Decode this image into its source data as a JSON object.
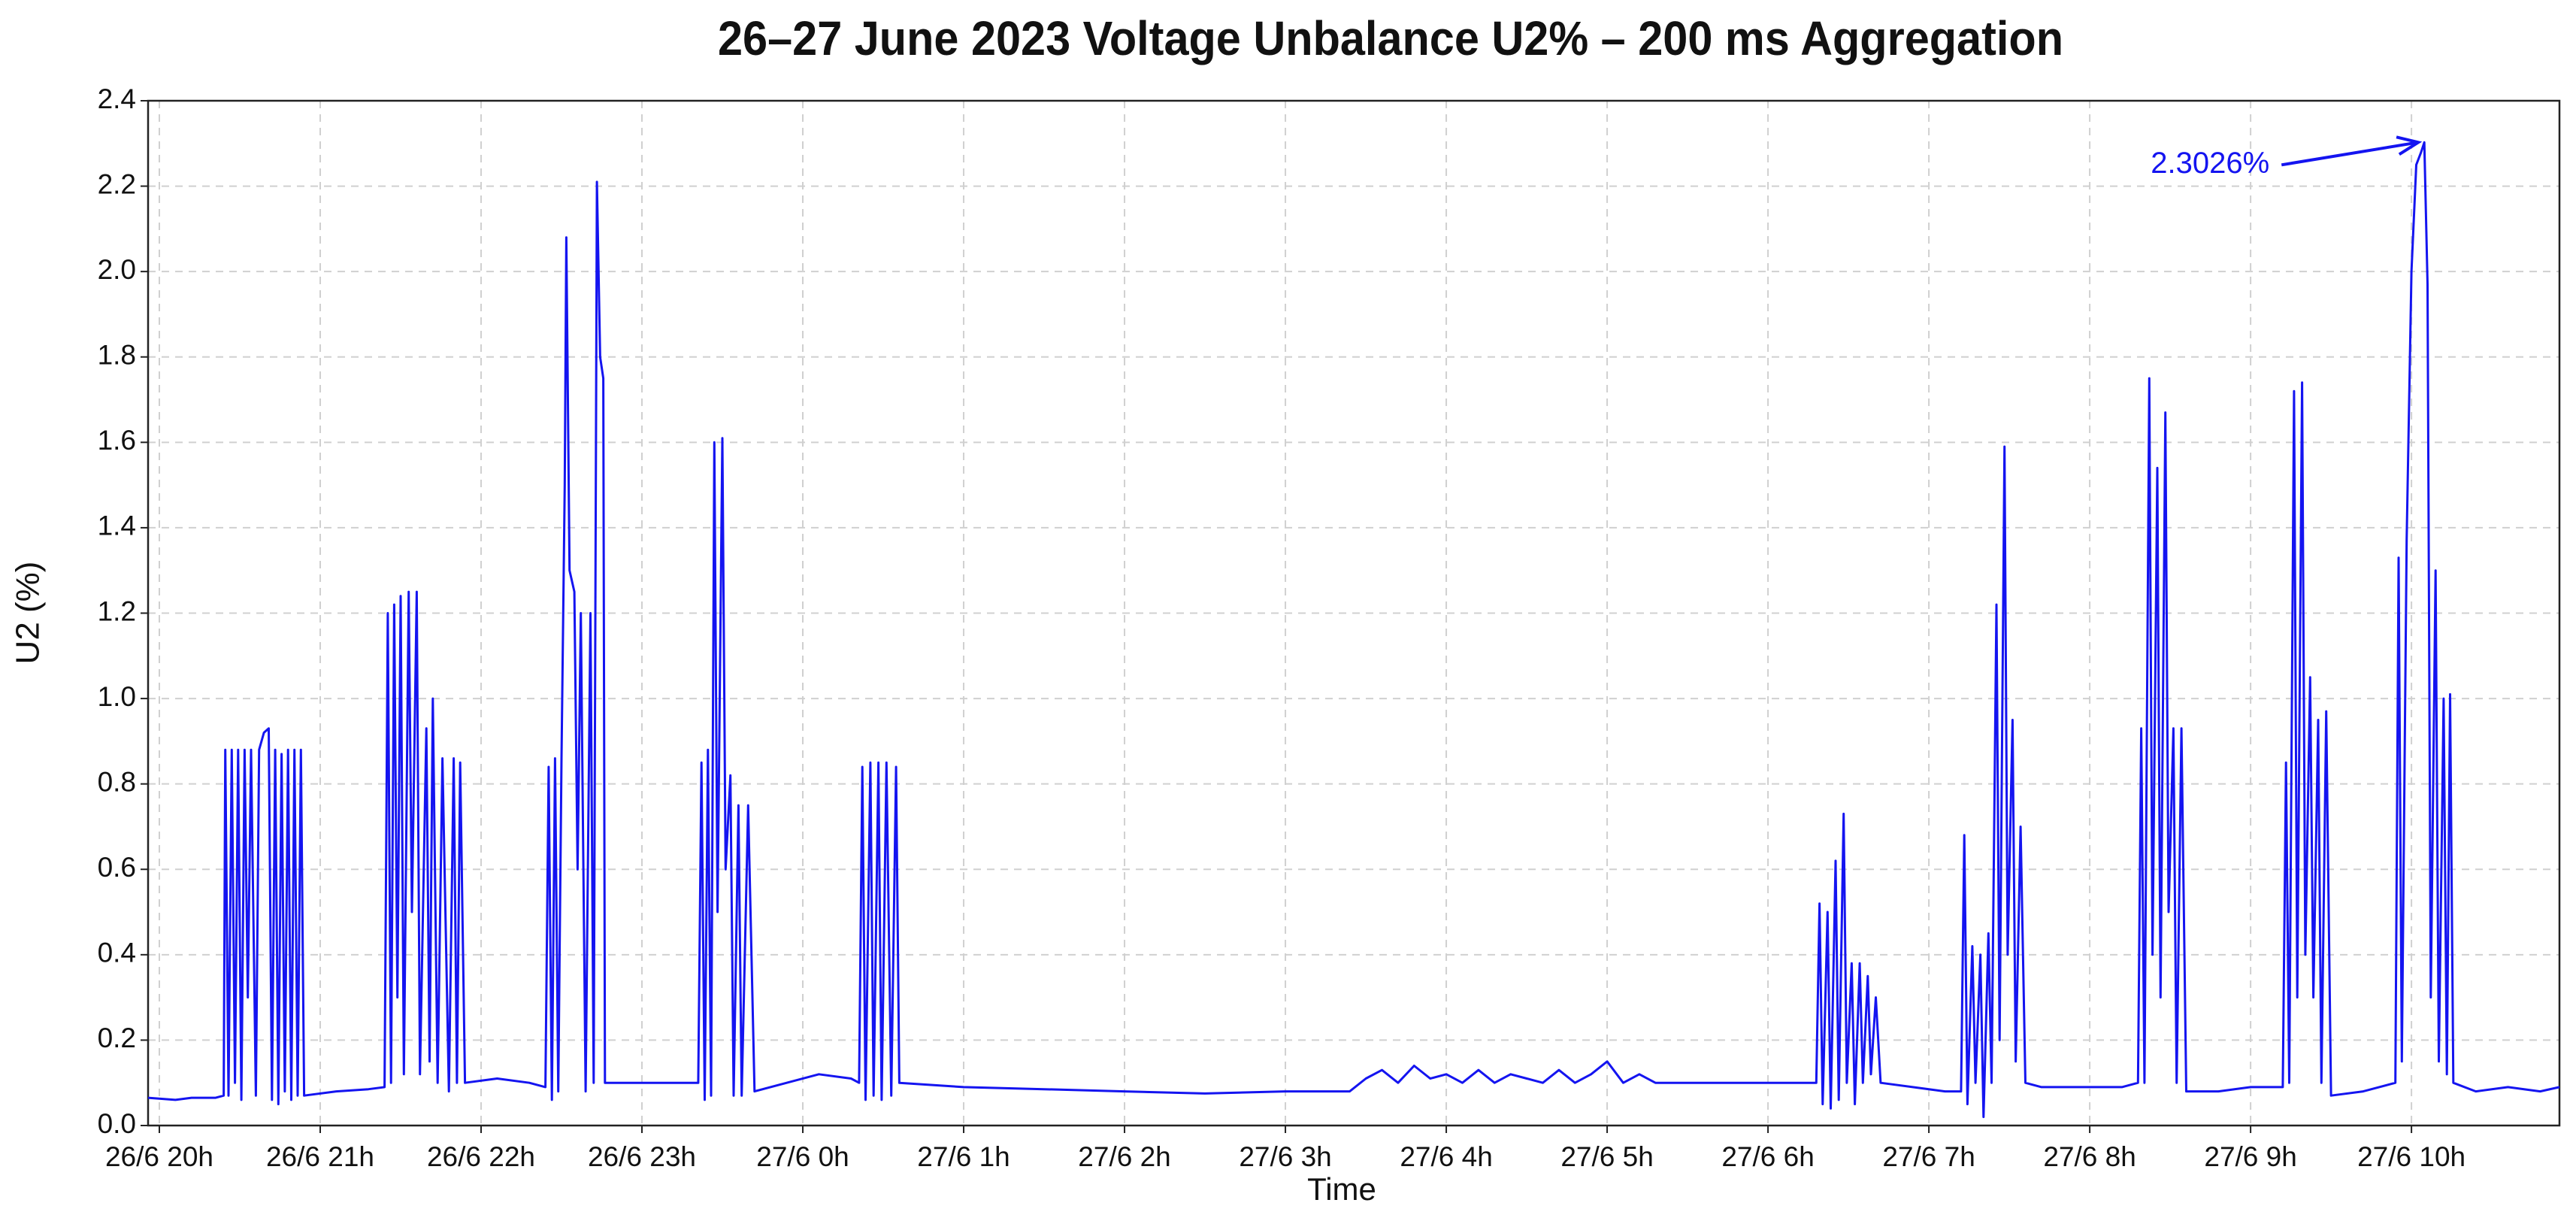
{
  "chart_data": {
    "type": "line",
    "title": "26–27 June 2023 Voltage Unbalance U2% – 200 ms Aggregation",
    "x_label": "Time",
    "y_label": "U2 (%)",
    "xlim": [
      19.93,
      34.92
    ],
    "xticks": [
      {
        "value": 20,
        "label": "26/6 20h"
      },
      {
        "value": 21,
        "label": "26/6 21h"
      },
      {
        "value": 22,
        "label": "26/6 22h"
      },
      {
        "value": 23,
        "label": "26/6 23h"
      },
      {
        "value": 24,
        "label": "27/6 0h"
      },
      {
        "value": 25,
        "label": "27/6 1h"
      },
      {
        "value": 26,
        "label": "27/6 2h"
      },
      {
        "value": 27,
        "label": "27/6 3h"
      },
      {
        "value": 28,
        "label": "27/6 4h"
      },
      {
        "value": 29,
        "label": "27/6 5h"
      },
      {
        "value": 30,
        "label": "27/6 6h"
      },
      {
        "value": 31,
        "label": "27/6 7h"
      },
      {
        "value": 32,
        "label": "27/6 8h"
      },
      {
        "value": 33,
        "label": "27/6 9h"
      },
      {
        "value": 34,
        "label": "27/6 10h"
      }
    ],
    "ylim": [
      0,
      2.4
    ],
    "yticks": [
      {
        "value": 0,
        "label": "0.0"
      },
      0.2,
      0.4,
      0.6,
      0.8,
      {
        "value": 1,
        "label": "1.0"
      },
      1.2,
      1.4,
      1.6,
      1.8,
      {
        "value": 2,
        "label": "2.0"
      },
      2.2,
      2.4
    ],
    "grid": true,
    "annotation": {
      "text": "2.3026%",
      "x": 34.08,
      "y": 2.3026
    },
    "x": [
      19.93,
      20.1,
      20.2,
      20.35,
      20.4,
      20.41,
      20.43,
      20.45,
      20.47,
      20.49,
      20.51,
      20.53,
      20.55,
      20.57,
      20.6,
      20.62,
      20.65,
      20.68,
      20.7,
      20.72,
      20.74,
      20.76,
      20.78,
      20.8,
      20.82,
      20.84,
      20.86,
      20.88,
      20.9,
      21.1,
      21.3,
      21.4,
      21.42,
      21.44,
      21.46,
      21.48,
      21.5,
      21.52,
      21.55,
      21.57,
      21.6,
      21.62,
      21.66,
      21.68,
      21.7,
      21.73,
      21.76,
      21.8,
      21.83,
      21.85,
      21.87,
      21.9,
      22.1,
      22.3,
      22.4,
      22.42,
      22.44,
      22.46,
      22.48,
      22.5,
      22.52,
      22.53,
      22.55,
      22.58,
      22.6,
      22.62,
      22.65,
      22.68,
      22.7,
      22.72,
      22.74,
      22.76,
      22.77,
      22.8,
      23.0,
      23.2,
      23.35,
      23.37,
      23.39,
      23.41,
      23.43,
      23.45,
      23.47,
      23.5,
      23.52,
      23.55,
      23.57,
      23.6,
      23.62,
      23.66,
      23.7,
      23.9,
      24.1,
      24.3,
      24.35,
      24.37,
      24.39,
      24.42,
      24.44,
      24.47,
      24.49,
      24.52,
      24.55,
      24.58,
      24.6,
      25.0,
      25.5,
      26.0,
      26.5,
      27.0,
      27.4,
      27.5,
      27.6,
      27.7,
      27.8,
      27.9,
      28.0,
      28.1,
      28.2,
      28.3,
      28.4,
      28.5,
      28.6,
      28.7,
      28.8,
      28.9,
      29.0,
      29.1,
      29.2,
      29.3,
      29.5,
      29.8,
      30.0,
      30.2,
      30.3,
      30.32,
      30.34,
      30.37,
      30.39,
      30.42,
      30.44,
      30.47,
      30.49,
      30.52,
      30.54,
      30.57,
      30.59,
      30.62,
      30.64,
      30.67,
      30.7,
      30.9,
      31.1,
      31.2,
      31.22,
      31.24,
      31.27,
      31.29,
      31.32,
      31.34,
      31.37,
      31.39,
      31.42,
      31.44,
      31.47,
      31.49,
      31.52,
      31.54,
      31.57,
      31.6,
      31.7,
      32.0,
      32.2,
      32.3,
      32.32,
      32.34,
      32.37,
      32.39,
      32.42,
      32.44,
      32.47,
      32.49,
      32.52,
      32.54,
      32.57,
      32.6,
      32.8,
      33.0,
      33.2,
      33.22,
      33.24,
      33.27,
      33.29,
      33.32,
      33.34,
      33.37,
      33.39,
      33.42,
      33.44,
      33.47,
      33.5,
      33.7,
      33.9,
      33.92,
      33.94,
      33.97,
      34.0,
      34.03,
      34.06,
      34.08,
      34.1,
      34.12,
      34.15,
      34.17,
      34.2,
      34.22,
      34.24,
      34.26,
      34.4,
      34.6,
      34.8,
      34.92
    ],
    "series": [
      {
        "name": "U2",
        "color": "#1414f0",
        "values": [
          0.065,
          0.06,
          0.065,
          0.065,
          0.07,
          0.88,
          0.07,
          0.88,
          0.1,
          0.88,
          0.06,
          0.88,
          0.3,
          0.88,
          0.07,
          0.88,
          0.92,
          0.93,
          0.06,
          0.88,
          0.05,
          0.87,
          0.08,
          0.88,
          0.06,
          0.88,
          0.07,
          0.88,
          0.07,
          0.08,
          0.085,
          0.09,
          1.2,
          0.1,
          1.22,
          0.3,
          1.24,
          0.12,
          1.25,
          0.5,
          1.25,
          0.12,
          0.93,
          0.15,
          1.0,
          0.1,
          0.86,
          0.08,
          0.86,
          0.1,
          0.85,
          0.1,
          0.11,
          0.1,
          0.09,
          0.84,
          0.06,
          0.86,
          0.08,
          0.86,
          1.5,
          2.08,
          1.3,
          1.25,
          0.6,
          1.2,
          0.08,
          1.2,
          0.1,
          2.21,
          1.8,
          1.75,
          0.1,
          0.1,
          0.1,
          0.1,
          0.1,
          0.85,
          0.06,
          0.88,
          0.07,
          1.6,
          0.5,
          1.61,
          0.6,
          0.82,
          0.07,
          0.75,
          0.07,
          0.75,
          0.08,
          0.1,
          0.12,
          0.11,
          0.1,
          0.84,
          0.06,
          0.85,
          0.07,
          0.85,
          0.06,
          0.85,
          0.07,
          0.84,
          0.1,
          0.09,
          0.085,
          0.08,
          0.075,
          0.08,
          0.08,
          0.11,
          0.13,
          0.1,
          0.14,
          0.11,
          0.12,
          0.1,
          0.13,
          0.1,
          0.12,
          0.11,
          0.1,
          0.13,
          0.1,
          0.12,
          0.15,
          0.1,
          0.12,
          0.1,
          0.1,
          0.1,
          0.1,
          0.1,
          0.1,
          0.52,
          0.05,
          0.5,
          0.04,
          0.62,
          0.06,
          0.73,
          0.1,
          0.38,
          0.05,
          0.38,
          0.1,
          0.35,
          0.12,
          0.3,
          0.1,
          0.09,
          0.08,
          0.08,
          0.68,
          0.05,
          0.42,
          0.1,
          0.4,
          0.02,
          0.45,
          0.1,
          1.22,
          0.2,
          1.59,
          0.4,
          0.95,
          0.15,
          0.7,
          0.1,
          0.09,
          0.09,
          0.09,
          0.1,
          0.93,
          0.1,
          1.75,
          0.4,
          1.54,
          0.3,
          1.67,
          0.5,
          0.93,
          0.1,
          0.93,
          0.08,
          0.08,
          0.09,
          0.09,
          0.85,
          0.1,
          1.72,
          0.3,
          1.74,
          0.4,
          1.05,
          0.3,
          0.95,
          0.1,
          0.97,
          0.07,
          0.08,
          0.1,
          1.33,
          0.15,
          1.37,
          2.0,
          2.25,
          2.28,
          2.3026,
          1.97,
          0.3,
          1.3,
          0.15,
          1.0,
          0.12,
          1.01,
          0.1,
          0.08,
          0.09,
          0.08,
          0.09
        ]
      }
    ]
  }
}
